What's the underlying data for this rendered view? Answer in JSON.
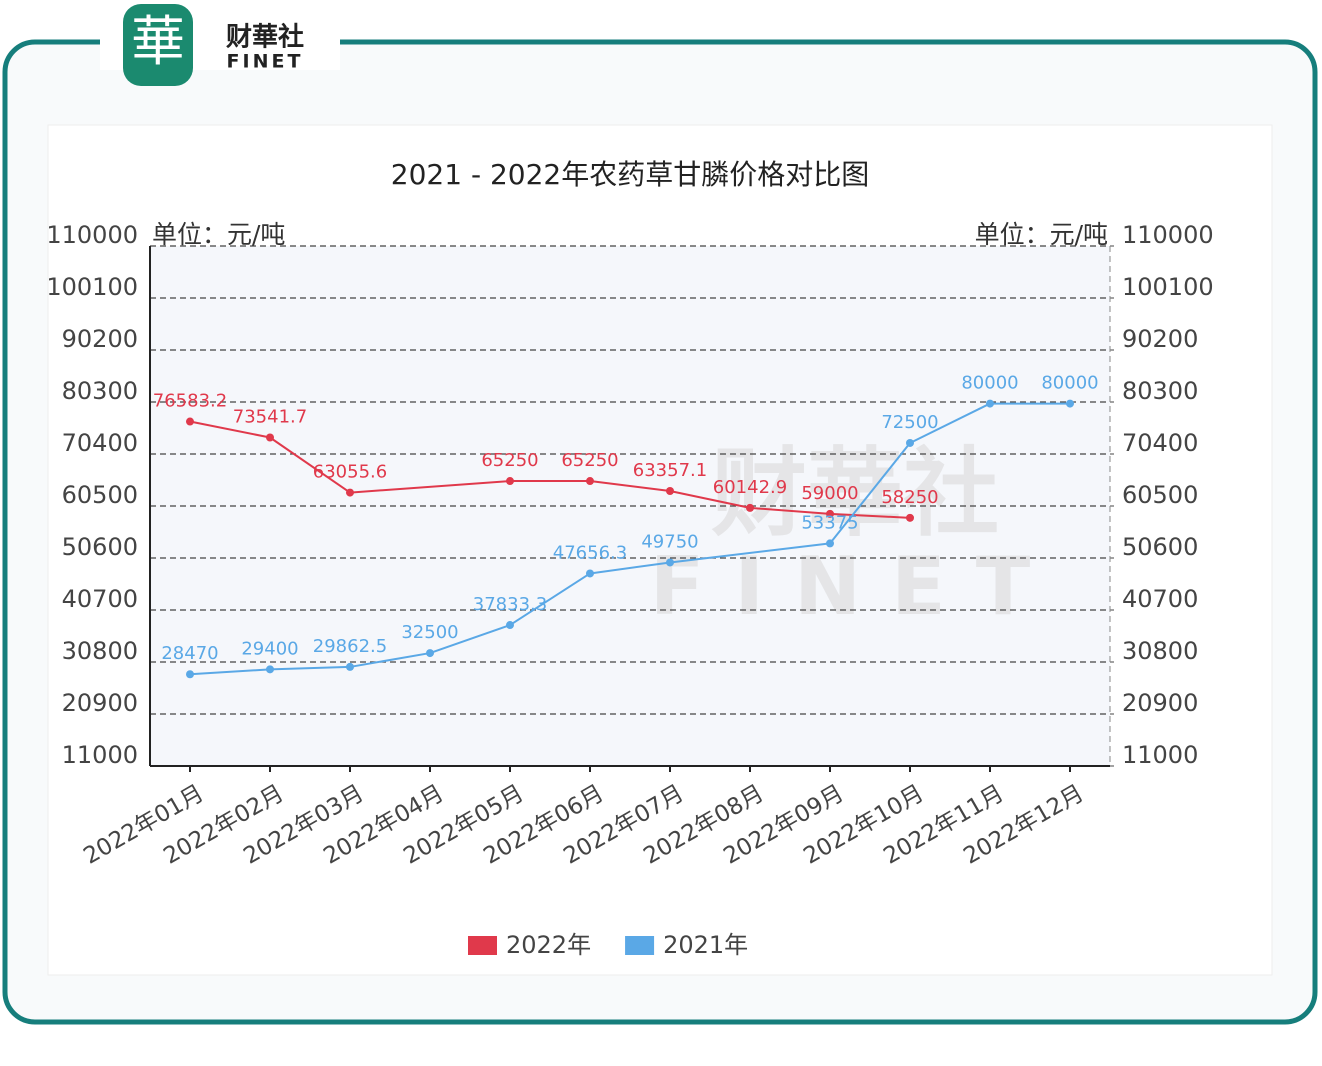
{
  "header": {
    "logo": "華",
    "brand": "财華社",
    "brand_en": "FINET"
  },
  "chart_data": {
    "type": "line",
    "title": "2021 - 2022年农药草甘膦价格对比图",
    "y_unit": "单位：元/吨",
    "y2_unit": "单位：元/吨",
    "categories": [
      "2022年01月",
      "2022年02月",
      "2022年03月",
      "2022年04月",
      "2022年05月",
      "2022年06月",
      "2022年07月",
      "2022年08月",
      "2022年09月",
      "2022年10月",
      "2022年11月",
      "2022年12月"
    ],
    "series": [
      {
        "name": "2022年",
        "color": "#e0394b",
        "values": [
          76583.2,
          73541.7,
          63055.6,
          null,
          65250,
          65250,
          63357.1,
          60142.9,
          59000,
          58250,
          null,
          null
        ]
      },
      {
        "name": "2021年",
        "color": "#5aa8e6",
        "values": [
          28470,
          29400,
          29862.5,
          32500,
          37833.3,
          47656.3,
          49750,
          null,
          53375,
          72500,
          80000,
          80000
        ]
      }
    ],
    "ylim": [
      11000,
      110000
    ],
    "yticks": [
      11000,
      20900,
      30800,
      40700,
      50600,
      60500,
      70400,
      80300,
      90200,
      100100,
      110000
    ],
    "y2lim": [
      11000,
      110000
    ],
    "y2ticks": [
      11000,
      20900,
      30800,
      40700,
      50600,
      60500,
      70400,
      80300,
      90200,
      100100,
      110000
    ],
    "grid": true,
    "legend": "bottom"
  }
}
